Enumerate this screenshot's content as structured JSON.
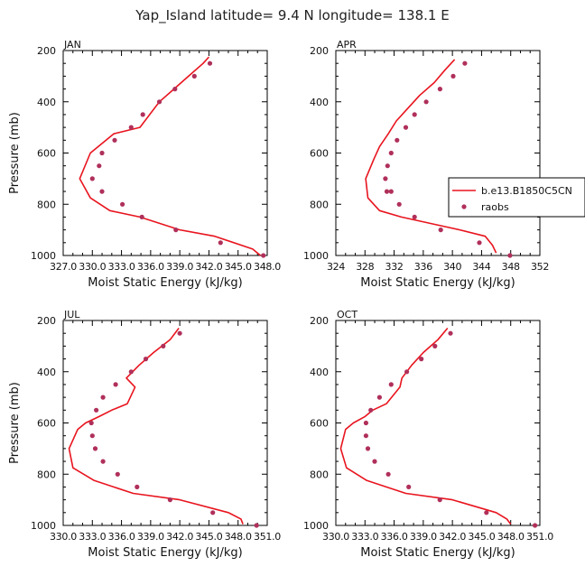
{
  "figure_title": "Yap_Island  latitude= 9.4 N longitude= 138.1 E",
  "colors": {
    "model": "#e8141e",
    "obs": "#b0305a",
    "axis": "#000000"
  },
  "legend": {
    "model": "b.e13.B1850C5CN",
    "obs": "raobs"
  },
  "chart_data": [
    {
      "type": "line",
      "panel": "JAN",
      "title": "JAN",
      "xlabel": "Moist Static Energy (kJ/kg)",
      "ylabel": "Pressure (mb)",
      "xlim": [
        327.0,
        348.0
      ],
      "ylim": [
        200,
        1000
      ],
      "xticks": [
        327.0,
        330.0,
        333.0,
        336.0,
        339.0,
        342.0,
        345.0,
        348.0
      ],
      "xtick_labels": [
        "327.0",
        "330.0",
        "333.0",
        "336.0",
        "339.0",
        "342.0",
        "345.0",
        "348.0"
      ],
      "yticks": [
        200,
        400,
        600,
        800,
        1000
      ],
      "series": [
        {
          "name": "b.e13.B1850C5CN",
          "x": [
            342.0,
            341.4,
            339.9,
            338.4,
            336.9,
            335.9,
            334.9,
            332.2,
            329.8,
            328.7,
            329.8,
            331.8,
            334.9,
            339.0,
            342.6,
            346.5,
            347.3
          ],
          "y": [
            225,
            250,
            300,
            350,
            400,
            450,
            500,
            525,
            600,
            700,
            775,
            825,
            850,
            900,
            925,
            975,
            1000
          ]
        },
        {
          "name": "raobs",
          "x": [
            342.1,
            340.5,
            338.5,
            336.9,
            335.2,
            334.0,
            332.3,
            331.0,
            330.7,
            330.0,
            331.0,
            333.1,
            335.1,
            338.6,
            343.2,
            347.6
          ],
          "y": [
            250,
            300,
            350,
            400,
            450,
            500,
            550,
            600,
            650,
            700,
            750,
            800,
            850,
            900,
            950,
            1000
          ]
        }
      ]
    },
    {
      "type": "line",
      "panel": "APR",
      "title": "APR",
      "xlabel": "Moist Static Energy (kJ/kg)",
      "ylabel": "Pressure (mb)",
      "xlim": [
        324,
        352
      ],
      "ylim": [
        200,
        1000
      ],
      "xticks": [
        324,
        328,
        332,
        336,
        340,
        344,
        348,
        352
      ],
      "xtick_labels": [
        "324",
        "328",
        "332",
        "336",
        "340",
        "344",
        "348",
        "352"
      ],
      "yticks": [
        200,
        400,
        600,
        800,
        1000
      ],
      "series": [
        {
          "name": "b.e13.B1850C5CN",
          "x": [
            340.3,
            339.0,
            337.5,
            335.5,
            333.9,
            332.3,
            331.2,
            330.0,
            329.2,
            328.1,
            328.4,
            330.0,
            333.0,
            337.0,
            341.0,
            344.5,
            345.5,
            346.0
          ],
          "y": [
            235,
            275,
            325,
            375,
            425,
            475,
            525,
            575,
            625,
            700,
            775,
            825,
            850,
            875,
            900,
            925,
            960,
            990
          ]
        },
        {
          "name": "raobs",
          "x": [
            341.7,
            340.1,
            338.3,
            336.4,
            334.8,
            333.6,
            332.4,
            331.6,
            331.1,
            330.8,
            331.0,
            331.6,
            332.7,
            334.8,
            338.4,
            343.7,
            347.9
          ],
          "y": [
            250,
            300,
            350,
            400,
            450,
            500,
            550,
            600,
            650,
            700,
            750,
            750,
            800,
            850,
            900,
            950,
            1000
          ]
        }
      ]
    },
    {
      "type": "line",
      "panel": "JUL",
      "title": "JUL",
      "xlabel": "Moist Static Energy (kJ/kg)",
      "ylabel": "Pressure (mb)",
      "xlim": [
        330.0,
        351.0
      ],
      "ylim": [
        200,
        1000
      ],
      "xticks": [
        330.0,
        333.0,
        336.0,
        339.0,
        342.0,
        345.0,
        348.0,
        351.0
      ],
      "xtick_labels": [
        "330.0",
        "333.0",
        "336.0",
        "339.0",
        "342.0",
        "345.0",
        "348.0",
        "351.0"
      ],
      "yticks": [
        200,
        400,
        600,
        800,
        1000
      ],
      "series": [
        {
          "name": "b.e13.B1850C5CN",
          "x": [
            341.9,
            341.0,
            339.3,
            337.8,
            336.5,
            337.4,
            336.6,
            335.0,
            333.7,
            332.3,
            331.5,
            330.6,
            331.0,
            333.2,
            337.2,
            342.0,
            347.0,
            348.3,
            348.5
          ],
          "y": [
            230,
            275,
            325,
            375,
            425,
            460,
            525,
            550,
            575,
            600,
            625,
            700,
            775,
            825,
            875,
            900,
            950,
            975,
            995
          ]
        },
        {
          "name": "raobs",
          "x": [
            342.0,
            340.3,
            338.5,
            337.0,
            335.4,
            334.1,
            333.4,
            332.9,
            333.0,
            333.3,
            334.1,
            335.6,
            337.6,
            341.0,
            345.4,
            349.9
          ],
          "y": [
            250,
            300,
            350,
            400,
            450,
            500,
            550,
            600,
            650,
            700,
            750,
            800,
            850,
            900,
            950,
            1000
          ]
        }
      ]
    },
    {
      "type": "line",
      "panel": "OCT",
      "title": "OCT",
      "xlabel": "Moist Static Energy (kJ/kg)",
      "ylabel": "Pressure (mb)",
      "xlim": [
        330.0,
        351.0
      ],
      "ylim": [
        200,
        1000
      ],
      "xticks": [
        330.0,
        333.0,
        336.0,
        339.0,
        342.0,
        345.0,
        348.0,
        351.0
      ],
      "xtick_labels": [
        "330.0",
        "333.0",
        "336.0",
        "339.0",
        "342.0",
        "345.0",
        "348.0",
        "351.0"
      ],
      "yticks": [
        200,
        400,
        600,
        800,
        1000
      ],
      "series": [
        {
          "name": "b.e13.B1850C5CN",
          "x": [
            341.5,
            340.5,
            339.0,
            337.8,
            336.8,
            336.6,
            335.2,
            333.8,
            333.0,
            331.8,
            331.0,
            330.5,
            331.1,
            333.2,
            337.2,
            342.0,
            346.5,
            347.6,
            348.0
          ],
          "y": [
            230,
            275,
            325,
            375,
            425,
            460,
            525,
            550,
            575,
            600,
            625,
            700,
            775,
            825,
            875,
            900,
            950,
            975,
            995
          ]
        },
        {
          "name": "raobs",
          "x": [
            341.8,
            340.2,
            338.8,
            337.3,
            335.7,
            334.5,
            333.6,
            333.1,
            333.1,
            333.3,
            334.0,
            335.4,
            337.5,
            340.7,
            345.5,
            350.5
          ],
          "y": [
            250,
            300,
            350,
            400,
            450,
            500,
            550,
            600,
            650,
            700,
            750,
            800,
            850,
            900,
            950,
            1000
          ]
        }
      ]
    }
  ]
}
